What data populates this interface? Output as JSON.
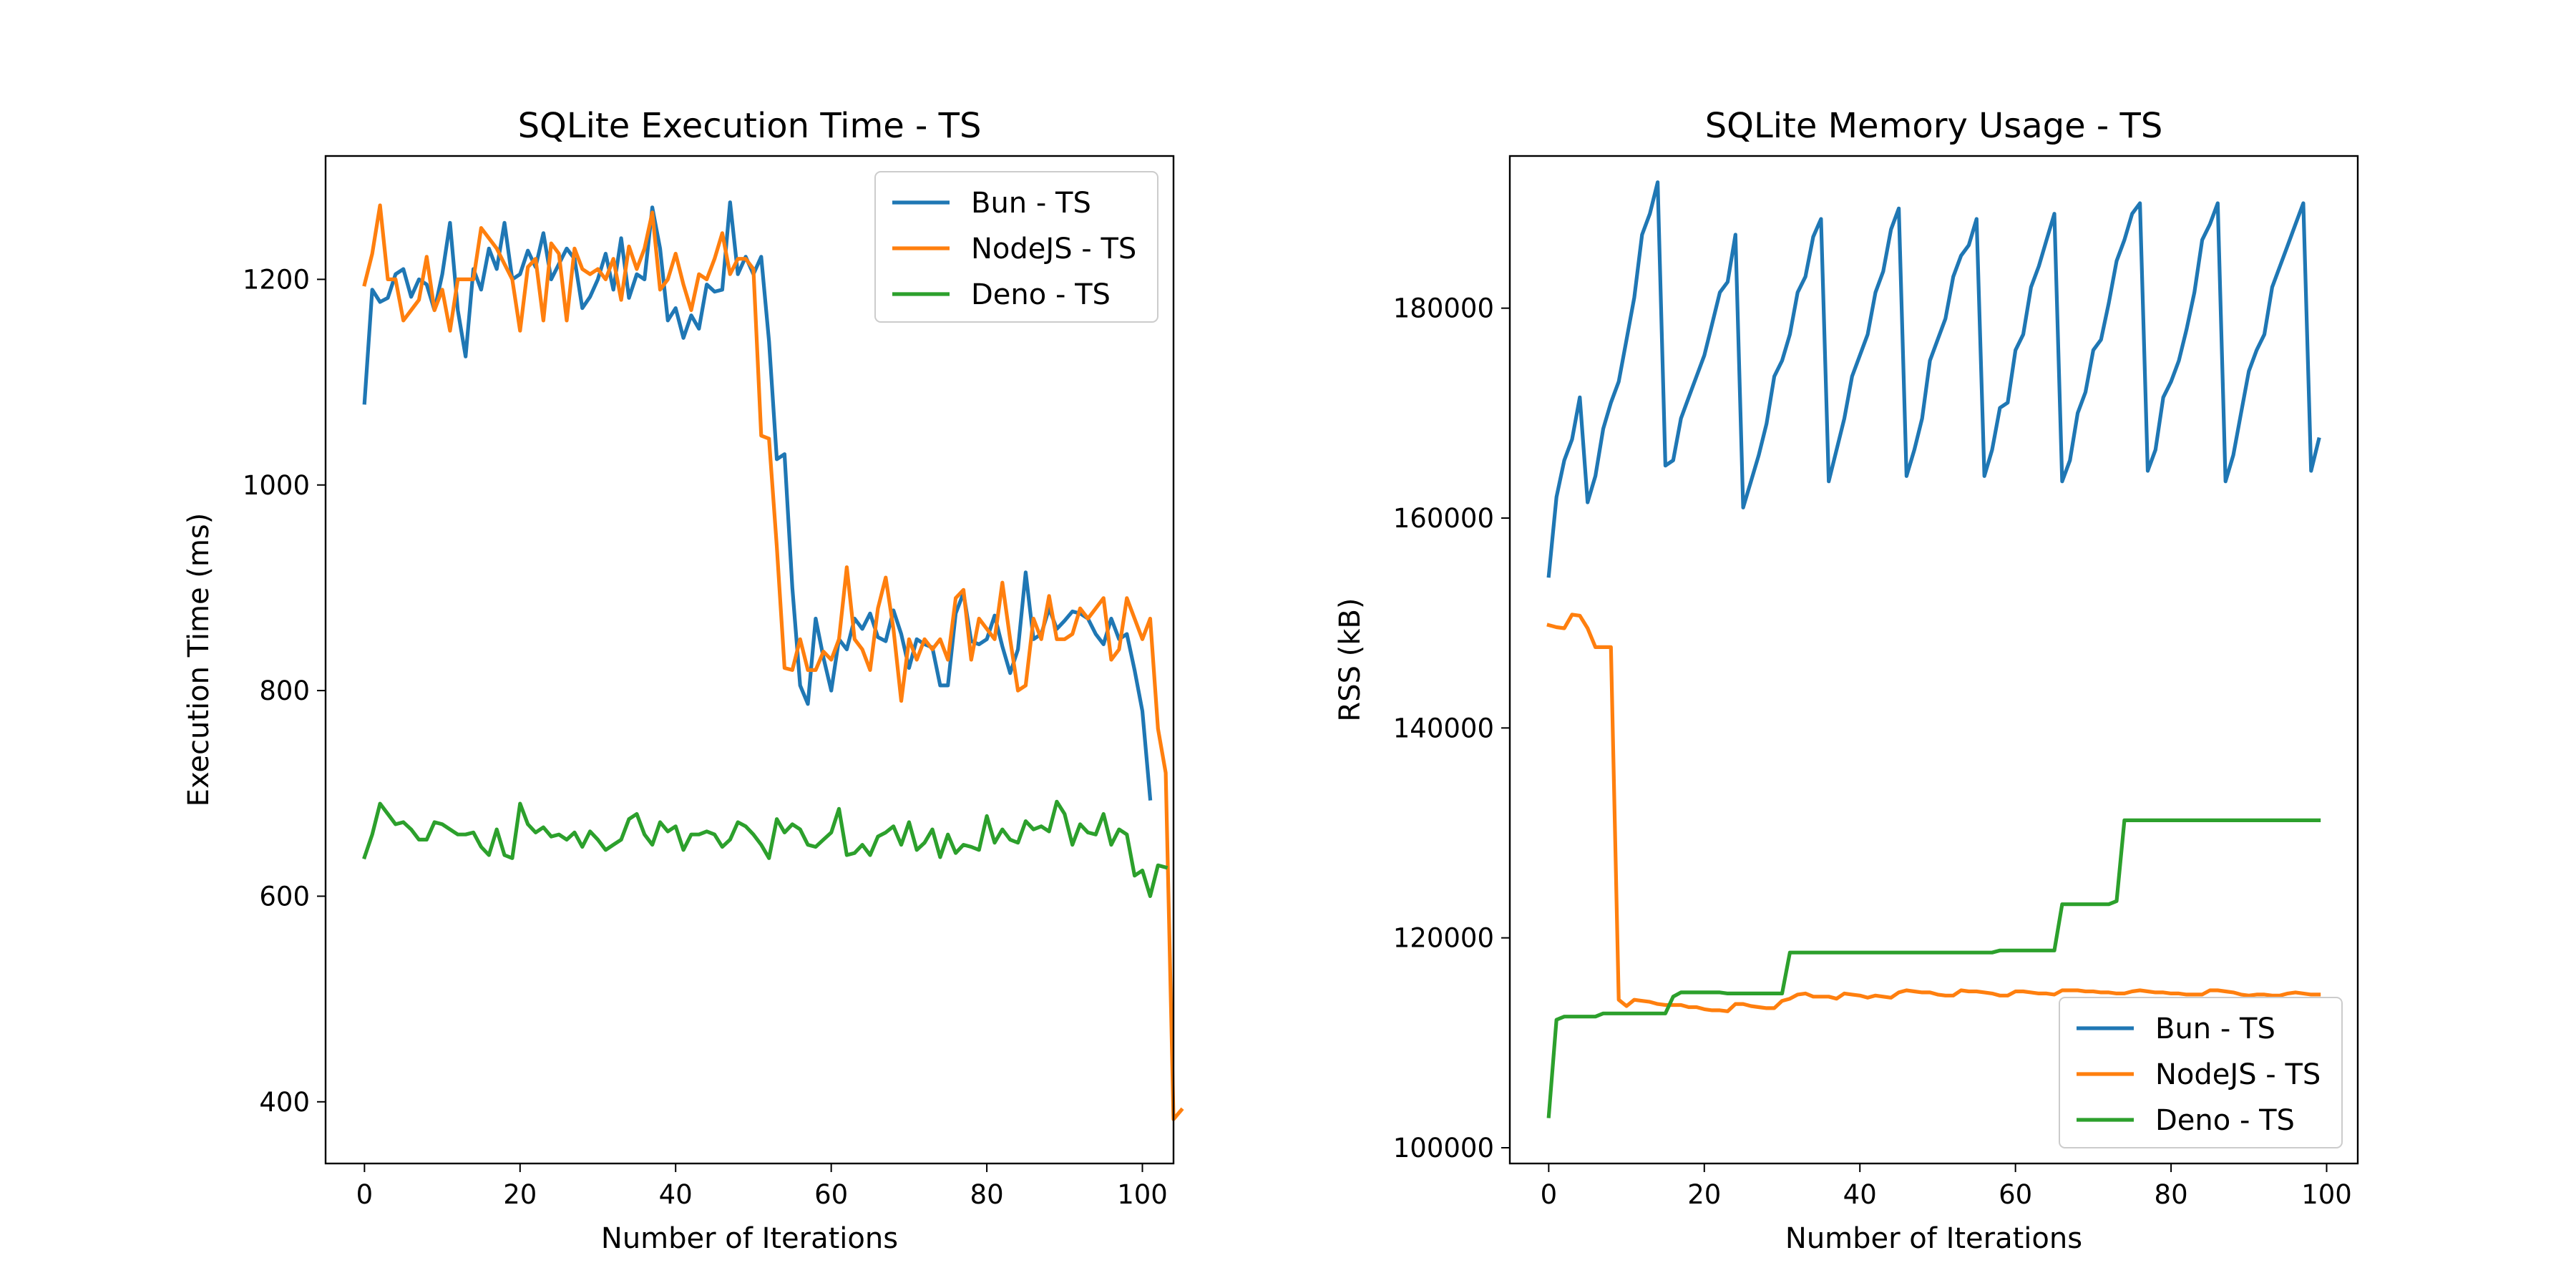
{
  "chart_data": [
    {
      "type": "line",
      "title": "SQLite Execution Time - TS",
      "xlabel": "Number of Iterations",
      "ylabel": "Execution Time (ms)",
      "xlim": [
        -5,
        104
      ],
      "ylim": [
        340,
        1320
      ],
      "xticks": [
        0,
        20,
        40,
        60,
        80,
        100
      ],
      "yticks": [
        400,
        600,
        800,
        1000,
        1200
      ],
      "grid": false,
      "legend": "top-right",
      "series": [
        {
          "name": "Bun - TS",
          "color": "#1f77b4",
          "values": [
            1080,
            1190,
            1178,
            1182,
            1205,
            1210,
            1183,
            1200,
            1195,
            1170,
            1205,
            1255,
            1170,
            1125,
            1210,
            1190,
            1230,
            1210,
            1255,
            1200,
            1205,
            1228,
            1212,
            1245,
            1200,
            1215,
            1230,
            1220,
            1172,
            1183,
            1200,
            1225,
            1190,
            1240,
            1182,
            1205,
            1200,
            1270,
            1230,
            1160,
            1172,
            1143,
            1165,
            1152,
            1195,
            1188,
            1190,
            1275,
            1205,
            1222,
            1205,
            1222,
            1140,
            1025,
            1030,
            900,
            805,
            787,
            870,
            832,
            800,
            850,
            840,
            870,
            860,
            875,
            852,
            848,
            878,
            855,
            822,
            850,
            845,
            842,
            805,
            805,
            875,
            895,
            848,
            845,
            850,
            873,
            843,
            817,
            840,
            915,
            850,
            855,
            880,
            860,
            868,
            877,
            875,
            870,
            855,
            845,
            870,
            850,
            855,
            820,
            780,
            695
          ]
        },
        {
          "name": "NodeJS - TS",
          "color": "#ff7f0e",
          "values": [
            1195,
            1225,
            1272,
            1200,
            1200,
            1160,
            1170,
            1180,
            1222,
            1170,
            1190,
            1150,
            1200,
            1200,
            1200,
            1250,
            1240,
            1230,
            1215,
            1200,
            1150,
            1212,
            1220,
            1160,
            1235,
            1225,
            1160,
            1230,
            1210,
            1205,
            1210,
            1200,
            1220,
            1180,
            1232,
            1210,
            1230,
            1265,
            1190,
            1200,
            1225,
            1195,
            1170,
            1205,
            1200,
            1220,
            1245,
            1205,
            1220,
            1220,
            1210,
            1048,
            1045,
            940,
            822,
            820,
            850,
            820,
            820,
            838,
            830,
            850,
            920,
            850,
            840,
            820,
            880,
            910,
            860,
            790,
            850,
            830,
            850,
            840,
            850,
            830,
            890,
            898,
            830,
            870,
            860,
            850,
            905,
            850,
            800,
            805,
            870,
            850,
            892,
            850,
            850,
            855,
            880,
            870,
            880,
            890,
            830,
            840,
            890,
            870,
            850,
            870,
            763,
            720,
            383,
            392
          ]
        },
        {
          "name": "Deno - TS",
          "color": "#2ca02c",
          "values": [
            638,
            660,
            690,
            680,
            670,
            672,
            665,
            655,
            655,
            672,
            670,
            665,
            660,
            660,
            662,
            648,
            640,
            665,
            640,
            637,
            690,
            670,
            662,
            667,
            658,
            660,
            655,
            662,
            648,
            663,
            655,
            645,
            650,
            655,
            675,
            680,
            660,
            650,
            672,
            663,
            668,
            645,
            660,
            660,
            663,
            660,
            648,
            655,
            672,
            668,
            660,
            650,
            637,
            675,
            662,
            670,
            665,
            650,
            648,
            655,
            662,
            685,
            640,
            642,
            650,
            640,
            658,
            662,
            668,
            650,
            672,
            645,
            652,
            665,
            638,
            660,
            642,
            650,
            648,
            645,
            678,
            652,
            665,
            655,
            652,
            673,
            665,
            668,
            663,
            692,
            680,
            650,
            670,
            662,
            660,
            680,
            650,
            665,
            660,
            620,
            625,
            600,
            630,
            628
          ]
        }
      ]
    },
    {
      "type": "line",
      "title": "SQLite Memory Usage - TS",
      "xlabel": "Number of Iterations",
      "ylabel": "RSS (kB)",
      "xlim": [
        -5,
        104
      ],
      "ylim": [
        98500,
        194500
      ],
      "xticks": [
        0,
        20,
        40,
        60,
        80,
        100
      ],
      "yticks": [
        100000,
        120000,
        140000,
        160000,
        180000
      ],
      "grid": false,
      "legend": "bottom-right",
      "series": [
        {
          "name": "Bun - TS",
          "color": "#1f77b4",
          "values": [
            154500,
            162000,
            165500,
            167500,
            171500,
            161500,
            164000,
            168500,
            171000,
            173000,
            177000,
            181000,
            187000,
            189000,
            192000,
            165000,
            165500,
            169500,
            171500,
            173500,
            175500,
            178500,
            181500,
            182500,
            187000,
            161000,
            163500,
            166000,
            169000,
            173500,
            175000,
            177500,
            181500,
            183000,
            186800,
            188500,
            163500,
            166500,
            169500,
            173500,
            175500,
            177500,
            181500,
            183500,
            187500,
            189500,
            164000,
            166500,
            169500,
            175000,
            177000,
            179000,
            183000,
            185000,
            186000,
            188500,
            164000,
            166500,
            170500,
            171000,
            176000,
            177500,
            182000,
            184000,
            186500,
            189000,
            163500,
            165500,
            170000,
            172000,
            176000,
            177000,
            180500,
            184500,
            186500,
            189000,
            190000,
            164500,
            166500,
            171500,
            173000,
            175000,
            178000,
            181500,
            186500,
            188000,
            190000,
            163500,
            166000,
            170000,
            174000,
            176000,
            177500,
            182000,
            184000,
            186000,
            188000,
            190000,
            164500,
            167500
          ]
        },
        {
          "name": "NodeJS - TS",
          "color": "#ff7f0e",
          "values": [
            149800,
            149600,
            149500,
            150800,
            150700,
            149500,
            147700,
            147700,
            147700,
            114100,
            113500,
            114100,
            114000,
            113900,
            113700,
            113600,
            113600,
            113600,
            113400,
            113400,
            113200,
            113100,
            113100,
            113000,
            113700,
            113700,
            113500,
            113400,
            113300,
            113300,
            114000,
            114200,
            114600,
            114700,
            114400,
            114400,
            114400,
            114200,
            114700,
            114600,
            114500,
            114300,
            114500,
            114400,
            114300,
            114800,
            115000,
            114900,
            114800,
            114800,
            114600,
            114500,
            114500,
            115000,
            114900,
            114900,
            114800,
            114700,
            114500,
            114500,
            114900,
            114900,
            114800,
            114700,
            114700,
            114600,
            115000,
            115000,
            115000,
            114900,
            114900,
            114800,
            114800,
            114700,
            114700,
            114900,
            115000,
            114900,
            114800,
            114800,
            114700,
            114700,
            114600,
            114600,
            114600,
            115000,
            115000,
            114900,
            114800,
            114600,
            114500,
            114600,
            114600,
            114500,
            114500,
            114700,
            114800,
            114700,
            114600,
            114600
          ]
        },
        {
          "name": "Deno - TS",
          "color": "#2ca02c",
          "values": [
            103000,
            112200,
            112500,
            112500,
            112500,
            112500,
            112500,
            112800,
            112800,
            112800,
            112800,
            112800,
            112800,
            112800,
            112800,
            112800,
            114400,
            114800,
            114800,
            114800,
            114800,
            114800,
            114800,
            114700,
            114700,
            114700,
            114700,
            114700,
            114700,
            114700,
            114700,
            118600,
            118600,
            118600,
            118600,
            118600,
            118600,
            118600,
            118600,
            118600,
            118600,
            118600,
            118600,
            118600,
            118600,
            118600,
            118600,
            118600,
            118600,
            118600,
            118600,
            118600,
            118600,
            118600,
            118600,
            118600,
            118600,
            118600,
            118800,
            118800,
            118800,
            118800,
            118800,
            118800,
            118800,
            118800,
            123200,
            123200,
            123200,
            123200,
            123200,
            123200,
            123200,
            123500,
            131200,
            131200,
            131200,
            131200,
            131200,
            131200,
            131200,
            131200,
            131200,
            131200,
            131200,
            131200,
            131200,
            131200,
            131200,
            131200,
            131200,
            131200,
            131200,
            131200,
            131200,
            131200,
            131200,
            131200,
            131200,
            131200
          ]
        }
      ]
    }
  ]
}
